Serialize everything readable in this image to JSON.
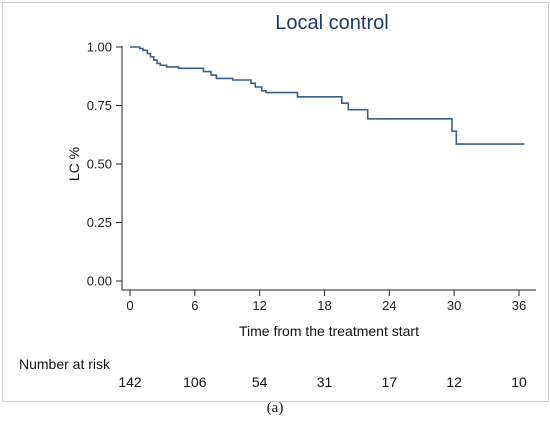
{
  "chart_data": {
    "type": "line",
    "title": "Local control",
    "xlabel": "Time from the treatment start",
    "ylabel": "LC %",
    "xlim": [
      0,
      37
    ],
    "ylim": [
      0,
      1
    ],
    "x_ticks": [
      0,
      6,
      12,
      18,
      24,
      30,
      36
    ],
    "x_tick_labels": [
      "0",
      "6",
      "12",
      "18",
      "24",
      "30",
      "36"
    ],
    "y_ticks": [
      0,
      0.25,
      0.5,
      0.75,
      1.0
    ],
    "y_tick_labels": [
      "0.00",
      "0.25",
      "0.50",
      "0.75",
      "1.00"
    ],
    "series": [
      {
        "color": "#3a5f8a",
        "step": true,
        "x": [
          0,
          0.9,
          1.2,
          1.6,
          1.9,
          2.2,
          2.5,
          2.8,
          3.4,
          4.5,
          6.8,
          7.5,
          8.0,
          9.5,
          11.2,
          11.6,
          12.2,
          12.6,
          15.5,
          18.6,
          19.6,
          20.2,
          21.8,
          22.0,
          27.0,
          29.8,
          30.2,
          36.5
        ],
        "y": [
          1.0,
          0.993,
          0.986,
          0.972,
          0.958,
          0.944,
          0.93,
          0.922,
          0.915,
          0.909,
          0.895,
          0.88,
          0.866,
          0.859,
          0.845,
          0.829,
          0.813,
          0.805,
          0.787,
          0.787,
          0.76,
          0.732,
          0.732,
          0.693,
          0.693,
          0.64,
          0.585,
          0.585
        ]
      }
    ],
    "grid": false,
    "risk_table": {
      "label": "Number at risk",
      "times": [
        0,
        6,
        12,
        18,
        24,
        30,
        36
      ],
      "values": [
        "142",
        "106",
        "54",
        "31",
        "17",
        "12",
        "10"
      ]
    }
  },
  "caption": "(a)"
}
